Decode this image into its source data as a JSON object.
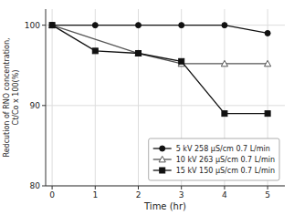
{
  "chart_data": {
    "type": "line",
    "title": "",
    "xlabel": "Time (hr)",
    "ylabel": "Redcution of RNO concentration,\nCt/Co x 100(%)",
    "xlim": [
      -0.15,
      5.4
    ],
    "ylim": [
      80,
      102
    ],
    "xticks": [
      0,
      1,
      2,
      3,
      4,
      5
    ],
    "yticks": [
      80,
      90,
      100
    ],
    "grid": true,
    "legend": "lower right",
    "series": [
      {
        "name": "5 kV 258 μS/cm 0.7 L/min",
        "color": "#111111",
        "marker": "circle",
        "line_style": "solid",
        "x": [
          0,
          1,
          2,
          3,
          4,
          5
        ],
        "values": [
          100,
          100,
          100,
          100,
          100,
          99
        ]
      },
      {
        "name": "10 kV 263 μS/cm 0.7 L/min",
        "color": "#555555",
        "marker": "triangle-open",
        "line_style": "solid",
        "x": [
          0,
          2,
          3,
          4,
          5
        ],
        "values": [
          100,
          96.5,
          95.2,
          95.2,
          95.2
        ]
      },
      {
        "name": "15 kV 150 μS/cm 0.7 L/min",
        "color": "#111111",
        "marker": "square",
        "line_style": "solid",
        "x": [
          0,
          1,
          2,
          3,
          4,
          5
        ],
        "values": [
          100,
          96.8,
          96.5,
          95.5,
          89,
          89
        ]
      }
    ]
  }
}
